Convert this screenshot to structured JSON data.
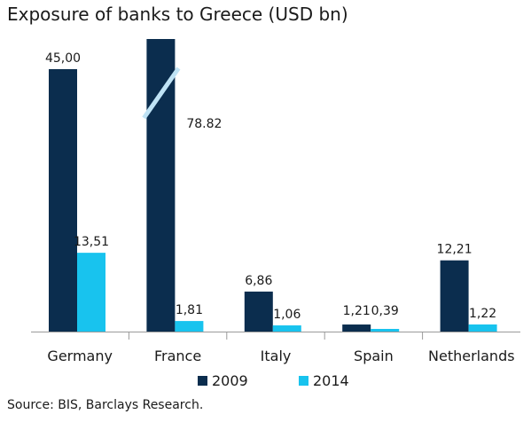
{
  "chart_data": {
    "type": "bar",
    "title": "Exposure of banks to Greece (USD bn)",
    "source": "Source: BIS, Barclays Research.",
    "categories": [
      "Germany",
      "France",
      "Italy",
      "Spain",
      "Netherlands"
    ],
    "series": [
      {
        "name": "2009",
        "color": "#0b2d4e",
        "values": [
          45.0,
          78.82,
          6.86,
          1.21,
          12.21
        ],
        "labels": [
          "45,00",
          "78.82",
          "6,86",
          "1,21",
          "12,21"
        ]
      },
      {
        "name": "2014",
        "color": "#18c3ee",
        "values": [
          13.51,
          1.81,
          1.06,
          0.39,
          1.22
        ],
        "labels": [
          "13,51",
          "1,81",
          "1,06",
          "0,39",
          "1,22"
        ]
      }
    ],
    "ylim": [
      0,
      45
    ],
    "axis_break": {
      "category": "France",
      "series": "2009"
    },
    "grid": false,
    "legend": "bottom-center"
  }
}
